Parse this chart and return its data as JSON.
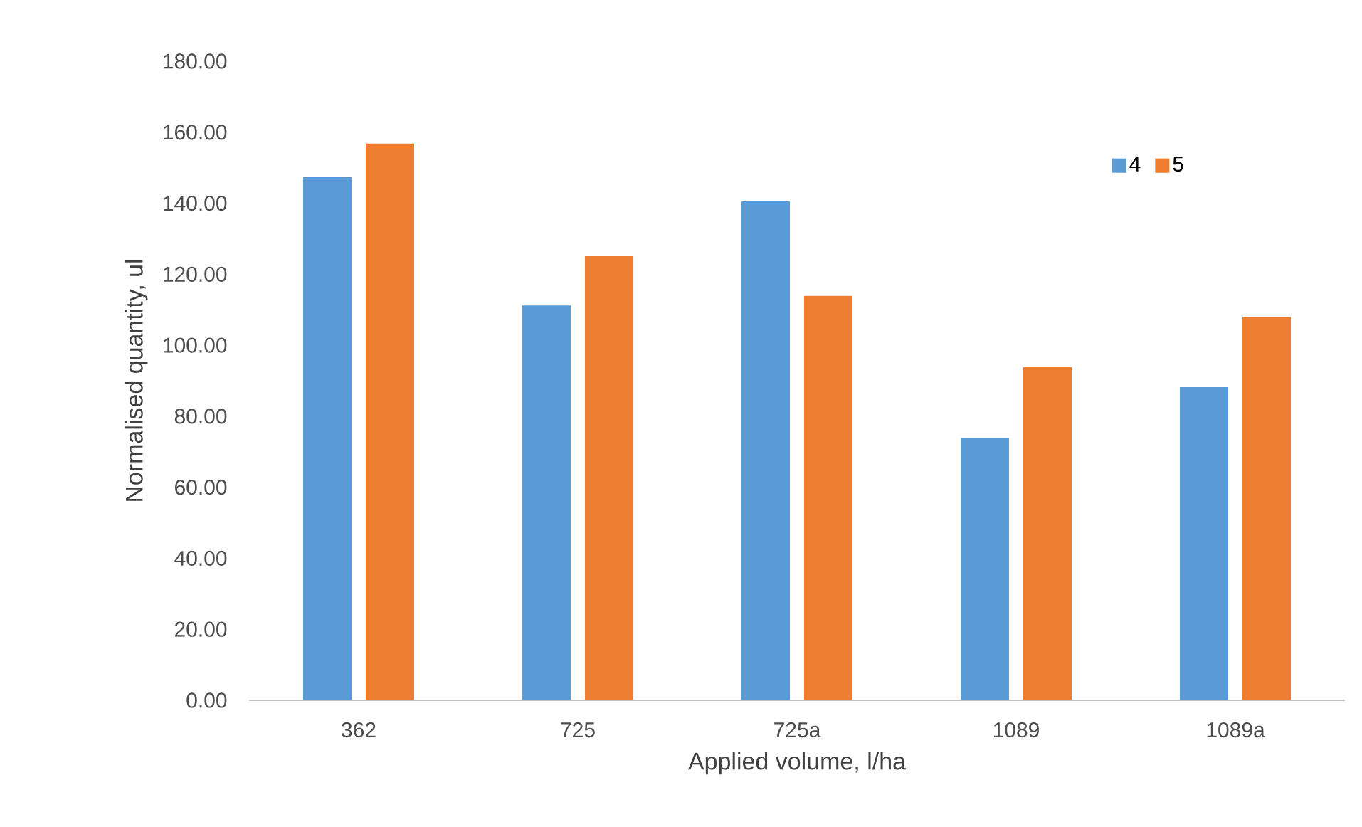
{
  "chart_data": {
    "type": "bar",
    "xlabel": "Applied volume, l/ha",
    "ylabel": "Normalised quantity, ul",
    "categories": [
      "362",
      "725",
      "725a",
      "1089",
      "1089a"
    ],
    "series": [
      {
        "name": "4",
        "color": "#5b9bd5",
        "values": [
          147.4,
          111.2,
          140.5,
          73.8,
          88.2
        ]
      },
      {
        "name": "5",
        "color": "#ed7d31",
        "values": [
          156.8,
          125.1,
          113.9,
          93.8,
          108.0
        ]
      }
    ],
    "ylim": [
      0,
      180
    ],
    "yticks": [
      {
        "value": 0,
        "label": "0.00"
      },
      {
        "value": 20,
        "label": "20.00"
      },
      {
        "value": 40,
        "label": "40.00"
      },
      {
        "value": 60,
        "label": "60.00"
      },
      {
        "value": 80,
        "label": "80.00"
      },
      {
        "value": 100,
        "label": "100.00"
      },
      {
        "value": 120,
        "label": "120.00"
      },
      {
        "value": 140,
        "label": "140.00"
      },
      {
        "value": 160,
        "label": "160.00"
      },
      {
        "value": 180,
        "label": "180.00"
      }
    ],
    "legend": "top right",
    "grid": false
  }
}
